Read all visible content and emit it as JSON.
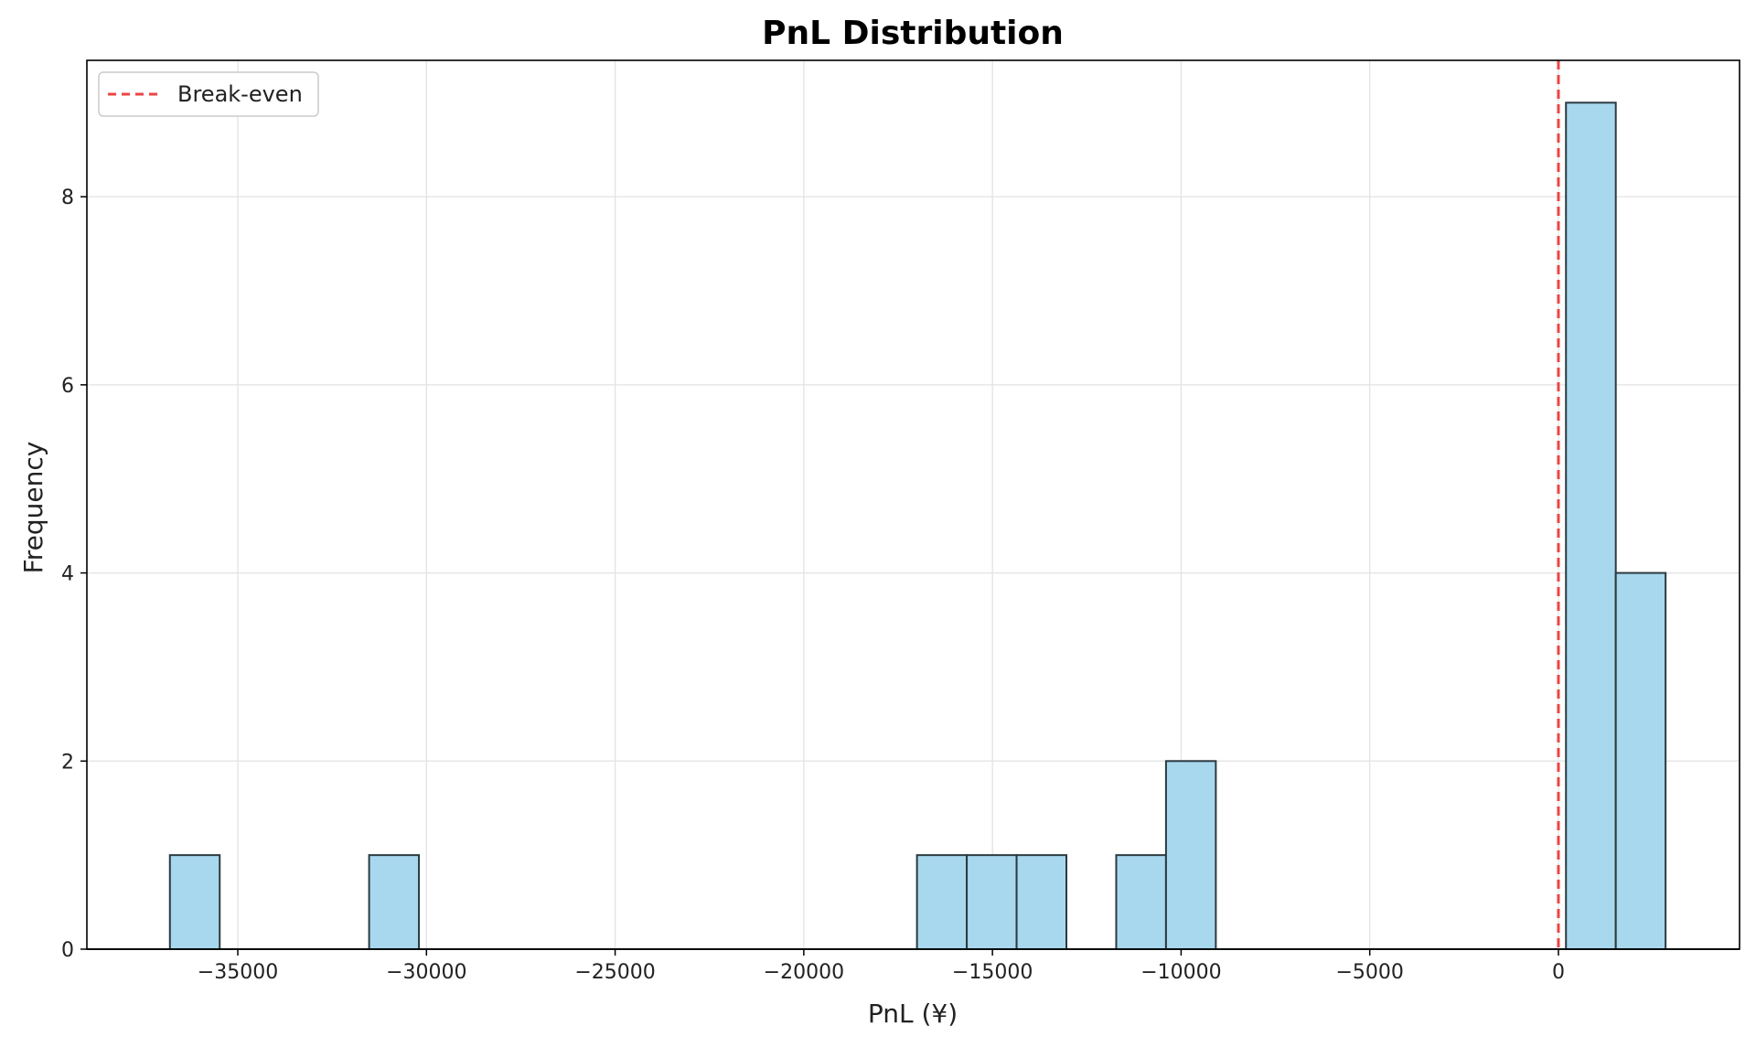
{
  "chart_data": {
    "type": "bar",
    "title": "PnL Distribution",
    "xlabel": "PnL (¥)",
    "ylabel": "Frequency",
    "xlim": [
      -39000,
      4800
    ],
    "ylim": [
      0,
      9.45
    ],
    "xticks": [
      -35000,
      -30000,
      -25000,
      -20000,
      -15000,
      -10000,
      -5000,
      0
    ],
    "xtick_labels": [
      "−35000",
      "−30000",
      "−25000",
      "−20000",
      "−15000",
      "−10000",
      "−5000",
      "0"
    ],
    "yticks": [
      0,
      2,
      4,
      6,
      8
    ],
    "ytick_labels": [
      "0",
      "2",
      "4",
      "6",
      "8"
    ],
    "grid": true,
    "bin_width": 1320,
    "bars": [
      {
        "x0": -36800,
        "count": 1
      },
      {
        "x0": -31520,
        "count": 1
      },
      {
        "x0": -17000,
        "count": 1
      },
      {
        "x0": -15680,
        "count": 1
      },
      {
        "x0": -14360,
        "count": 1
      },
      {
        "x0": -11720,
        "count": 1
      },
      {
        "x0": -10400,
        "count": 2
      },
      {
        "x0": 200,
        "count": 9
      },
      {
        "x0": 1520,
        "count": 4
      }
    ],
    "reference_line": {
      "x": 0,
      "label": "Break-even",
      "color": "#ee4444",
      "style": "dashed"
    },
    "legend": {
      "position": "top-left",
      "entries": [
        "Break-even"
      ]
    },
    "bar_color": "#a8d8ee",
    "bar_edge_color": "#2b3a40"
  }
}
